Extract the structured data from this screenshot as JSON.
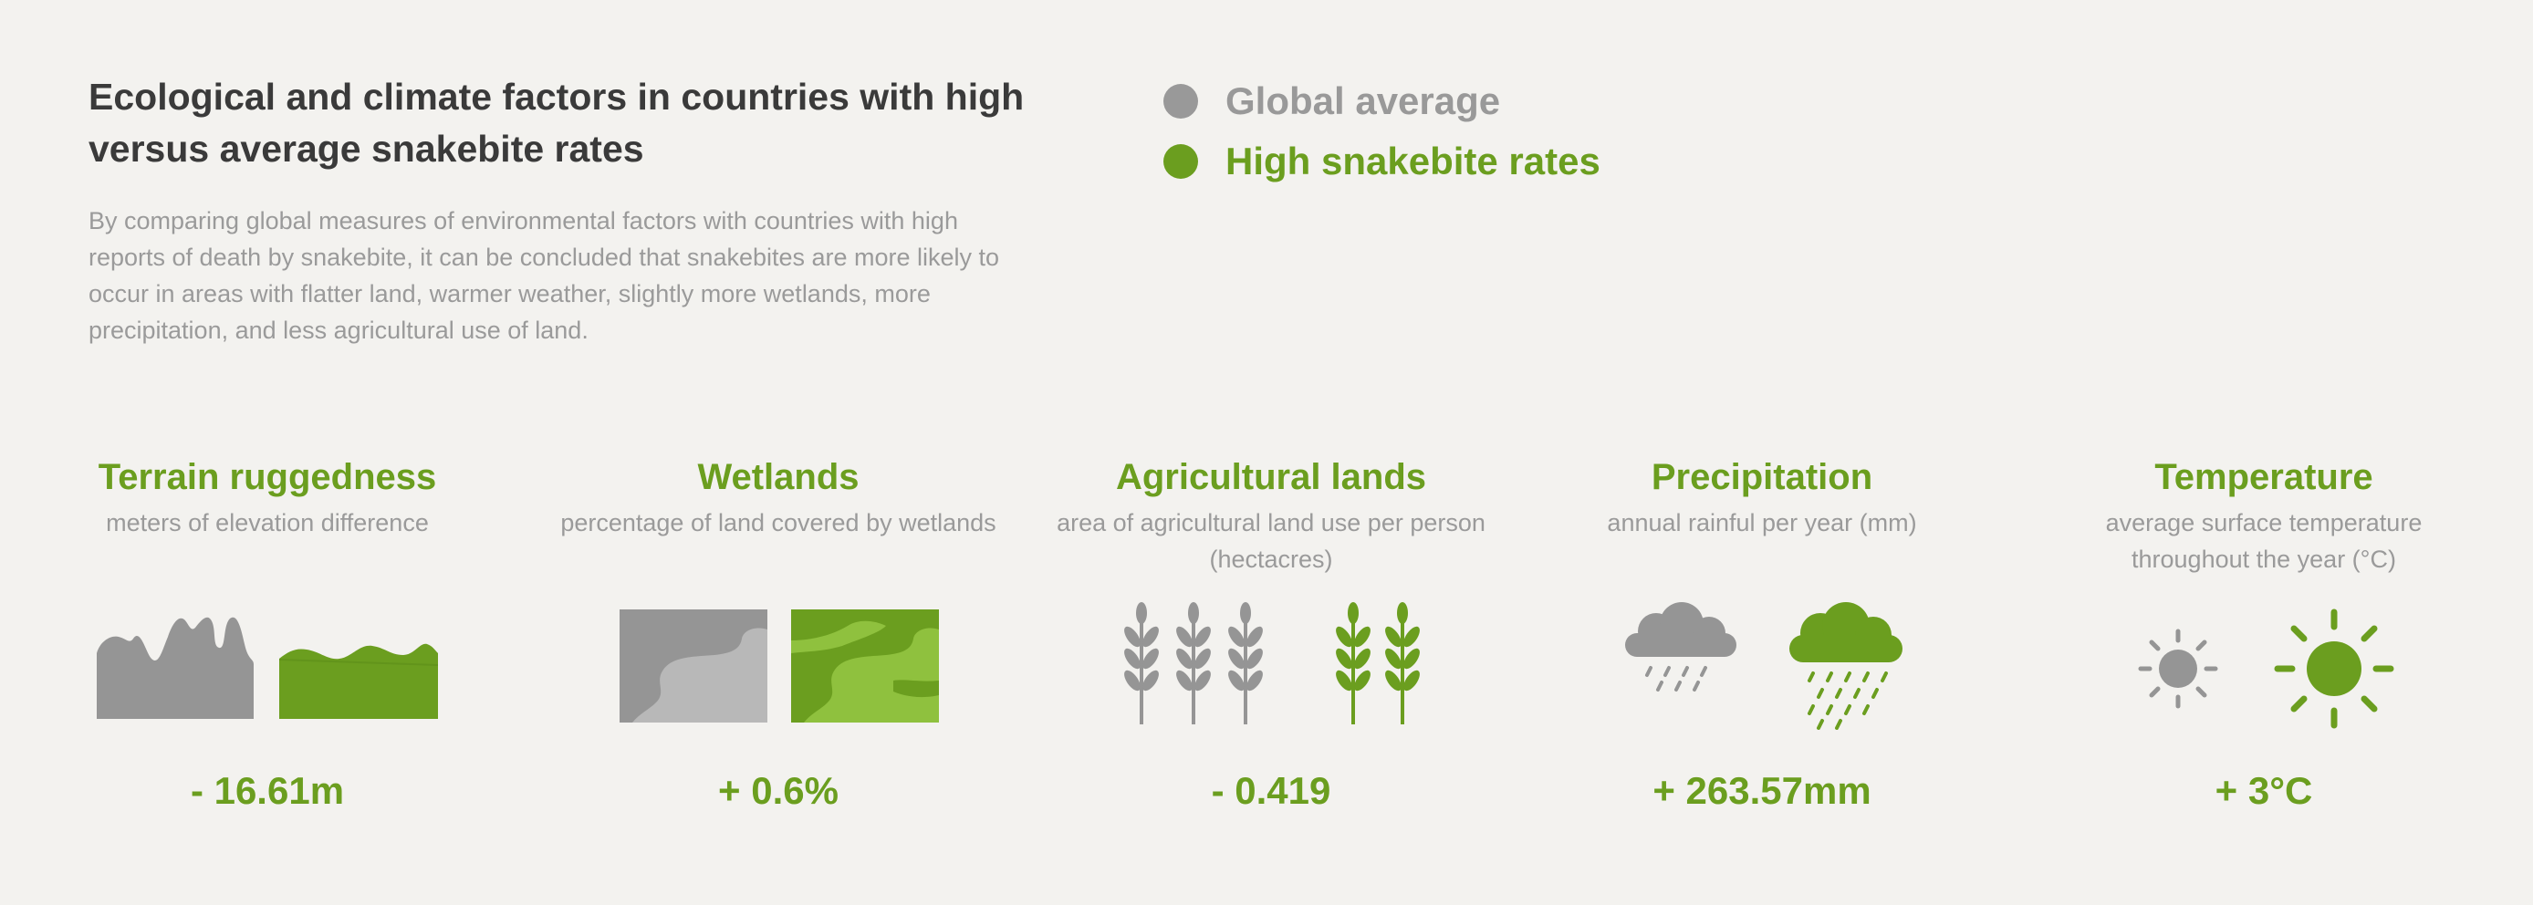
{
  "header": {
    "title": "Ecological and climate factors in countries with high versus average snakebite rates",
    "description": "By comparing global measures of environmental factors with countries with high reports of death by snakebite, it can be concluded that snakebites are more likely to occur in areas with flatter land, warmer weather, slightly more wetlands, more precipitation, and less agricultural use of land."
  },
  "legend": {
    "global_label": "Global average",
    "high_label": "High snakebite rates",
    "global_color": "#999999",
    "high_color": "#6b9e1f"
  },
  "factors": [
    {
      "title": "Terrain ruggedness",
      "subtitle": "meters of elevation difference",
      "value": "- 16.61m",
      "icon_global": "rugged-mountain-icon",
      "icon_high": "flat-terrain-icon"
    },
    {
      "title": "Wetlands",
      "subtitle": "percentage of land covered by wetlands",
      "value": "+ 0.6%",
      "icon_global": "wetland-square-icon",
      "icon_high": "wetland-square-icon"
    },
    {
      "title": "Agricultural lands",
      "subtitle": "area of agricultural land use per person (hectacres)",
      "value": "- 0.419",
      "icon_global": "wheat-icon",
      "icon_high": "wheat-icon"
    },
    {
      "title": "Precipitation",
      "subtitle": "annual rainful per year (mm)",
      "value": "+ 263.57mm",
      "icon_global": "rain-cloud-icon",
      "icon_high": "rain-cloud-icon"
    },
    {
      "title": "Temperature",
      "subtitle": "average surface temperature throughout the year (°C)",
      "value": "+ 3°C",
      "icon_global": "sun-icon",
      "icon_high": "sun-icon"
    }
  ]
}
